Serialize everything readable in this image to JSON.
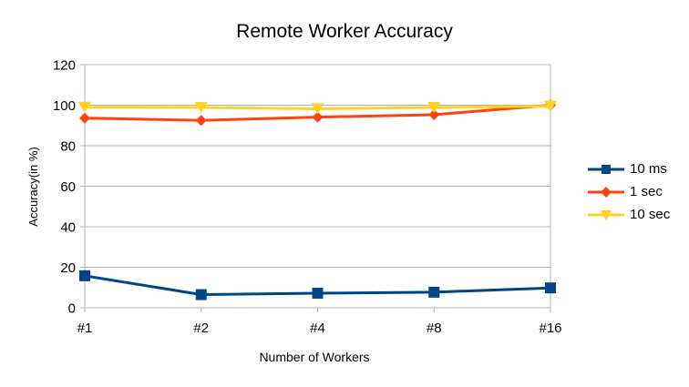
{
  "chart_data": {
    "type": "line",
    "title": "Remote Worker Accuracy",
    "xlabel": "Number of Workers",
    "ylabel": "Accuracy(in %)",
    "categories": [
      "#1",
      "#2",
      "#4",
      "#8",
      "#16"
    ],
    "ylim": [
      0,
      120
    ],
    "yticks": [
      0,
      20,
      40,
      60,
      80,
      100,
      120
    ],
    "grid": true,
    "legend_position": "right",
    "series": [
      {
        "name": "10 ms",
        "color": "#004586",
        "marker": "square",
        "values": [
          15.8,
          6.5,
          7.2,
          7.7,
          9.8
        ]
      },
      {
        "name": "1 sec",
        "color": "#ff420e",
        "marker": "diamond",
        "values": [
          93.6,
          92.5,
          94.1,
          95.3,
          100
        ]
      },
      {
        "name": "10 sec",
        "color": "#ffd320",
        "marker": "triangle-down",
        "values": [
          99,
          98.9,
          98.2,
          98.9,
          99.5
        ]
      }
    ]
  },
  "legend": {
    "items": [
      {
        "label": " 10 ms"
      },
      {
        "label": "1 sec"
      },
      {
        "label": "10 sec"
      }
    ]
  }
}
